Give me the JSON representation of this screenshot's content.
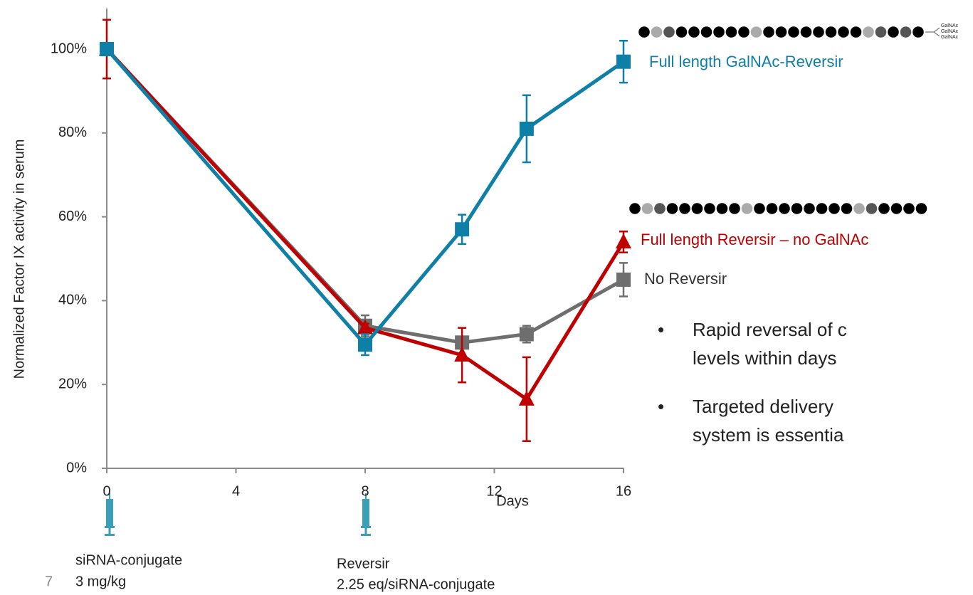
{
  "chart_data": {
    "type": "line",
    "x": [
      0,
      8,
      11,
      13,
      16
    ],
    "xlim": [
      0,
      16
    ],
    "xticks": [
      0,
      4,
      8,
      12,
      16
    ],
    "ylim": [
      0,
      100
    ],
    "yticks": [
      {
        "value": 0,
        "label": "0%"
      },
      {
        "value": 20,
        "label": "20%"
      },
      {
        "value": 40,
        "label": "40%"
      },
      {
        "value": 60,
        "label": "60%"
      },
      {
        "value": 80,
        "label": "80%"
      },
      {
        "value": 100,
        "label": "100%"
      }
    ],
    "xlabel": "Days",
    "ylabel": "Normalized Factor IX activity in serum",
    "series": [
      {
        "name": "No Reversir",
        "color": "#6e6e6e",
        "marker": "square",
        "values": [
          100,
          34,
          30,
          32,
          45
        ],
        "errors": [
          1,
          2.5,
          1,
          2,
          4
        ]
      },
      {
        "name": "Full length Reversir – no GalNAc",
        "color": "#c00000",
        "marker": "triangle",
        "values": [
          100,
          33.5,
          27,
          16.5,
          54
        ],
        "errors": [
          7,
          1,
          6.5,
          10,
          2.5
        ]
      },
      {
        "name": "Full length GalNAc-Reversir",
        "color": "#0e7fa6",
        "marker": "square",
        "values": [
          100,
          29.5,
          57,
          81,
          97
        ],
        "errors": [
          1.5,
          2.5,
          3.5,
          8,
          5
        ]
      }
    ],
    "annotations": [
      "siRNA-conjugate",
      "3 mg/kg",
      "Reversir",
      "2.25 eq/siRNA-conjugate"
    ],
    "galnac_labels": [
      "GalNAc",
      "GalNAc",
      "GalNAc"
    ],
    "bullets": [
      [
        "Rapid reversal of c",
        "levels within days"
      ],
      [
        "Targeted delivery",
        "system is essentia"
      ]
    ],
    "page_number": "7"
  }
}
